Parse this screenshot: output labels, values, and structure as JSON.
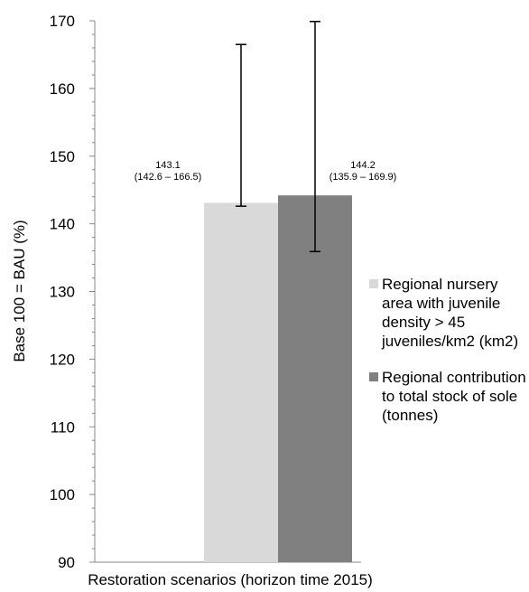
{
  "chart_data": {
    "type": "bar",
    "categories": [
      ""
    ],
    "series": [
      {
        "name": "Regional nursery area with juvenile density > 45 juveniles/km2 (km2)",
        "values": [
          143.1
        ],
        "ci_low": [
          142.6
        ],
        "ci_high": [
          166.5
        ],
        "label_value": "143.1",
        "label_range": "(142.6 – 166.5)",
        "color": "#d9d9d9"
      },
      {
        "name": "Regional contribution to total stock of sole (tonnes)",
        "values": [
          144.2
        ],
        "ci_low": [
          135.9
        ],
        "ci_high": [
          169.9
        ],
        "label_value": "144.2",
        "label_range": "(135.9 – 169.9)",
        "color": "#808080"
      }
    ],
    "xlabel": "Restoration scenarios (horizon time 2015)",
    "ylabel": "Base 100 = BAU (%)",
    "ylim": [
      90,
      170
    ],
    "yticks": [
      90,
      100,
      110,
      120,
      130,
      140,
      150,
      160,
      170
    ],
    "grid": false,
    "legend_position": "right"
  }
}
